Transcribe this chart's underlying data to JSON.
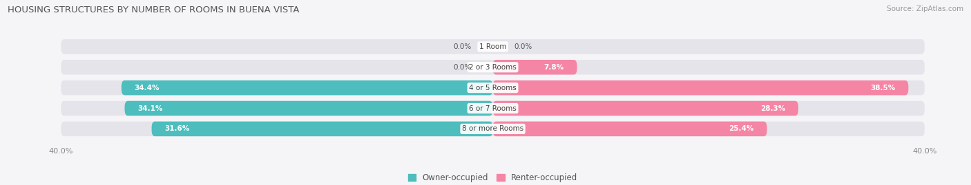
{
  "title": "HOUSING STRUCTURES BY NUMBER OF ROOMS IN BUENA VISTA",
  "source": "Source: ZipAtlas.com",
  "categories": [
    "1 Room",
    "2 or 3 Rooms",
    "4 or 5 Rooms",
    "6 or 7 Rooms",
    "8 or more Rooms"
  ],
  "owner_values": [
    0.0,
    0.0,
    34.4,
    34.1,
    31.6
  ],
  "renter_values": [
    0.0,
    7.8,
    38.5,
    28.3,
    25.4
  ],
  "owner_color": "#4dbdbd",
  "renter_color": "#f585a5",
  "bar_bg_color": "#e4e4ea",
  "axis_max": 40.0,
  "bar_height": 0.72,
  "label_color_white": "#ffffff",
  "label_color_dark": "#555555",
  "bg_color": "#f5f5f8",
  "title_fontsize": 9.5,
  "source_fontsize": 7.5,
  "legend_fontsize": 8.5,
  "tick_fontsize": 8,
  "cat_fontsize": 7.5,
  "val_fontsize": 7.5
}
